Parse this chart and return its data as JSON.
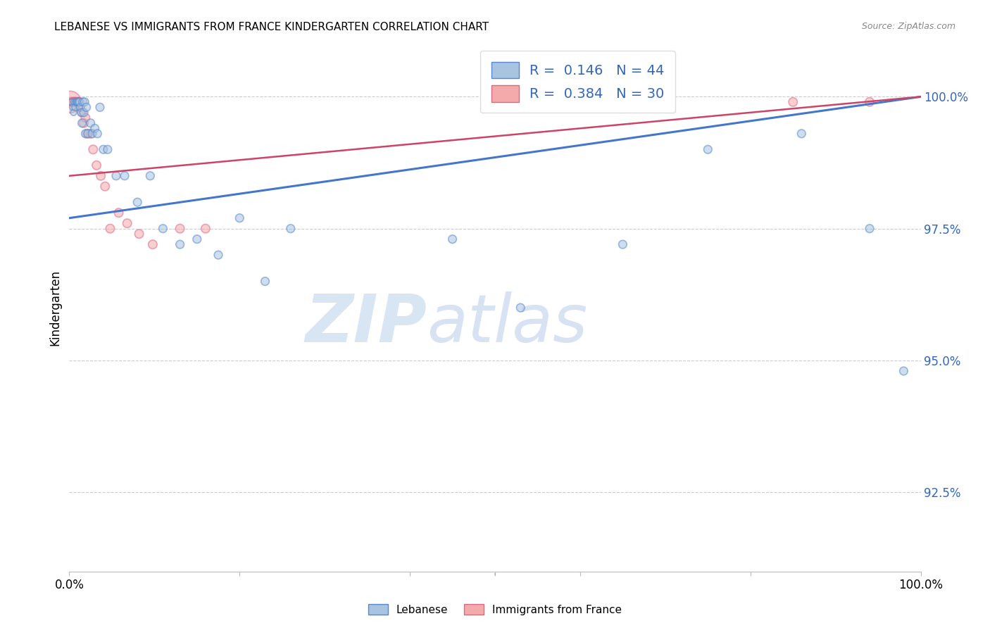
{
  "title": "LEBANESE VS IMMIGRANTS FROM FRANCE KINDERGARTEN CORRELATION CHART",
  "source": "Source: ZipAtlas.com",
  "ylabel": "Kindergarten",
  "ytick_labels": [
    "92.5%",
    "95.0%",
    "97.5%",
    "100.0%"
  ],
  "ytick_values": [
    0.925,
    0.95,
    0.975,
    1.0
  ],
  "xlim": [
    0.0,
    1.0
  ],
  "ylim": [
    0.91,
    1.01
  ],
  "blue_R": 0.146,
  "blue_N": 44,
  "pink_R": 0.384,
  "pink_N": 30,
  "blue_color": "#A8C4E0",
  "pink_color": "#F4AAAA",
  "blue_edge_color": "#5588CC",
  "pink_edge_color": "#DD6688",
  "blue_line_color": "#4477CC",
  "pink_line_color": "#CC4466",
  "legend_blue_label": "Lebanese",
  "legend_pink_label": "Immigrants from France",
  "blue_label_color": "#3366BB",
  "watermark_zip": "ZIP",
  "watermark_atlas": "atlas",
  "background_color": "#FFFFFF",
  "blue_scatter_x": [
    0.002,
    0.004,
    0.005,
    0.006,
    0.007,
    0.008,
    0.009,
    0.01,
    0.011,
    0.012,
    0.013,
    0.014,
    0.015,
    0.016,
    0.017,
    0.018,
    0.019,
    0.02,
    0.022,
    0.025,
    0.027,
    0.03,
    0.033,
    0.036,
    0.04,
    0.045,
    0.055,
    0.065,
    0.08,
    0.095,
    0.11,
    0.13,
    0.15,
    0.175,
    0.2,
    0.23,
    0.26,
    0.45,
    0.53,
    0.65,
    0.75,
    0.86,
    0.94,
    0.98
  ],
  "blue_scatter_y": [
    0.999,
    0.998,
    0.997,
    0.999,
    0.998,
    0.999,
    0.999,
    0.999,
    0.999,
    0.999,
    0.998,
    0.997,
    0.995,
    0.999,
    0.997,
    0.999,
    0.993,
    0.998,
    0.993,
    0.995,
    0.993,
    0.994,
    0.993,
    0.998,
    0.99,
    0.99,
    0.985,
    0.985,
    0.98,
    0.985,
    0.975,
    0.972,
    0.973,
    0.97,
    0.977,
    0.965,
    0.975,
    0.973,
    0.96,
    0.972,
    0.99,
    0.993,
    0.975,
    0.948
  ],
  "blue_scatter_sizes": [
    40,
    40,
    40,
    50,
    50,
    50,
    60,
    60,
    60,
    60,
    60,
    60,
    70,
    70,
    70,
    70,
    70,
    70,
    70,
    70,
    70,
    70,
    70,
    70,
    70,
    70,
    70,
    70,
    70,
    70,
    70,
    70,
    70,
    70,
    70,
    70,
    70,
    70,
    70,
    70,
    70,
    70,
    70,
    70
  ],
  "pink_scatter_x": [
    0.001,
    0.003,
    0.004,
    0.005,
    0.006,
    0.007,
    0.008,
    0.009,
    0.01,
    0.011,
    0.012,
    0.013,
    0.015,
    0.017,
    0.019,
    0.021,
    0.025,
    0.028,
    0.032,
    0.037,
    0.042,
    0.048,
    0.058,
    0.068,
    0.082,
    0.098,
    0.13,
    0.16,
    0.85,
    0.94
  ],
  "pink_scatter_y": [
    0.999,
    0.999,
    0.999,
    0.999,
    0.999,
    0.999,
    0.999,
    0.999,
    0.999,
    0.999,
    0.999,
    0.998,
    0.997,
    0.995,
    0.996,
    0.993,
    0.993,
    0.99,
    0.987,
    0.985,
    0.983,
    0.975,
    0.978,
    0.976,
    0.974,
    0.972,
    0.975,
    0.975,
    0.999,
    0.999
  ],
  "pink_scatter_sizes": [
    500,
    80,
    80,
    80,
    80,
    80,
    80,
    80,
    80,
    80,
    80,
    80,
    80,
    80,
    80,
    80,
    80,
    80,
    80,
    80,
    80,
    80,
    80,
    80,
    80,
    80,
    80,
    80,
    80,
    80
  ],
  "blue_trend_x": [
    0.0,
    1.0
  ],
  "blue_trend_y": [
    0.977,
    1.0
  ],
  "pink_trend_x": [
    0.0,
    1.0
  ],
  "pink_trend_y": [
    0.985,
    1.0
  ]
}
